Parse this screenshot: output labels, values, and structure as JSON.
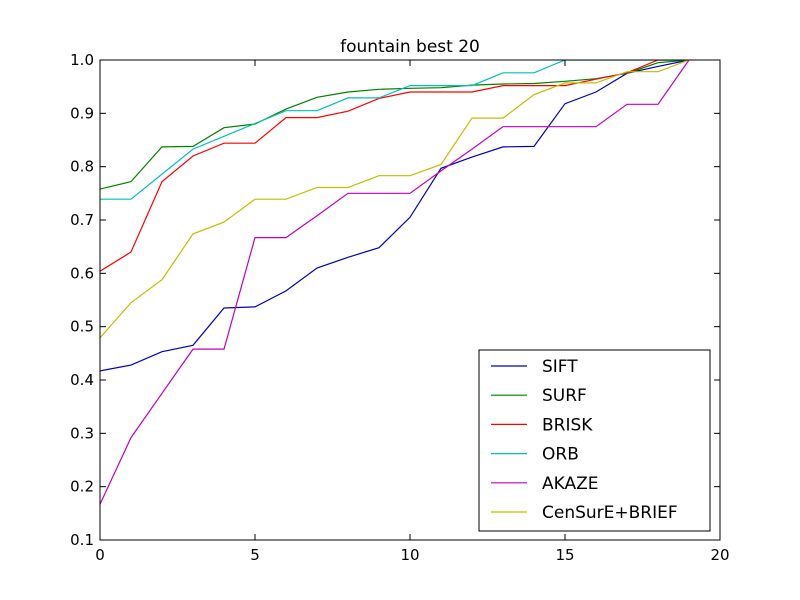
{
  "chart_data": {
    "type": "line",
    "title": "fountain best 20",
    "xlabel": "",
    "ylabel": "",
    "xlim": [
      0,
      20
    ],
    "ylim": [
      0.1,
      1.0
    ],
    "xticks": [
      "0",
      "5",
      "10",
      "15",
      "20"
    ],
    "yticks": [
      "0.1",
      "0.2",
      "0.3",
      "0.4",
      "0.5",
      "0.6",
      "0.7",
      "0.8",
      "0.9",
      "1.0"
    ],
    "grid": false,
    "legend_position": "lower-right",
    "x": [
      0,
      1,
      2,
      3,
      4,
      5,
      6,
      7,
      8,
      9,
      10,
      11,
      12,
      13,
      14,
      15,
      16,
      17,
      18,
      19
    ],
    "series": [
      {
        "name": "SIFT",
        "color": "#0000bf",
        "values": [
          0.417,
          0.428,
          0.453,
          0.465,
          0.535,
          0.537,
          0.567,
          0.61,
          0.63,
          0.648,
          0.705,
          0.797,
          0.818,
          0.837,
          0.838,
          0.918,
          0.94,
          0.975,
          0.988,
          1.0
        ]
      },
      {
        "name": "SURF",
        "color": "#008000",
        "values": [
          0.758,
          0.772,
          0.837,
          0.838,
          0.873,
          0.88,
          0.908,
          0.93,
          0.94,
          0.945,
          0.947,
          0.948,
          0.953,
          0.955,
          0.956,
          0.96,
          0.965,
          0.975,
          0.995,
          1.0
        ]
      },
      {
        "name": "BRISK",
        "color": "#ff0000",
        "values": [
          0.604,
          0.64,
          0.772,
          0.82,
          0.844,
          0.844,
          0.892,
          0.892,
          0.904,
          0.928,
          0.94,
          0.94,
          0.94,
          0.952,
          0.952,
          0.952,
          0.964,
          0.976,
          1.0,
          1.0
        ]
      },
      {
        "name": "ORB",
        "color": "#00bfbf",
        "values": [
          0.739,
          0.739,
          0.786,
          0.833,
          0.857,
          0.881,
          0.905,
          0.905,
          0.929,
          0.929,
          0.952,
          0.952,
          0.952,
          0.976,
          0.976,
          1.0,
          1.0,
          1.0,
          1.0,
          1.0
        ]
      },
      {
        "name": "AKAZE",
        "color": "#bf00bf",
        "values": [
          0.167,
          0.292,
          0.375,
          0.458,
          0.458,
          0.667,
          0.667,
          0.708,
          0.75,
          0.75,
          0.75,
          0.792,
          0.833,
          0.875,
          0.875,
          0.875,
          0.875,
          0.917,
          0.917,
          1.0
        ]
      },
      {
        "name": "CenSurE+BRIEF",
        "color": "#bfbf00",
        "values": [
          0.479,
          0.545,
          0.588,
          0.674,
          0.696,
          0.739,
          0.739,
          0.761,
          0.761,
          0.783,
          0.783,
          0.804,
          0.891,
          0.891,
          0.935,
          0.957,
          0.957,
          0.978,
          0.978,
          1.0
        ]
      }
    ]
  }
}
